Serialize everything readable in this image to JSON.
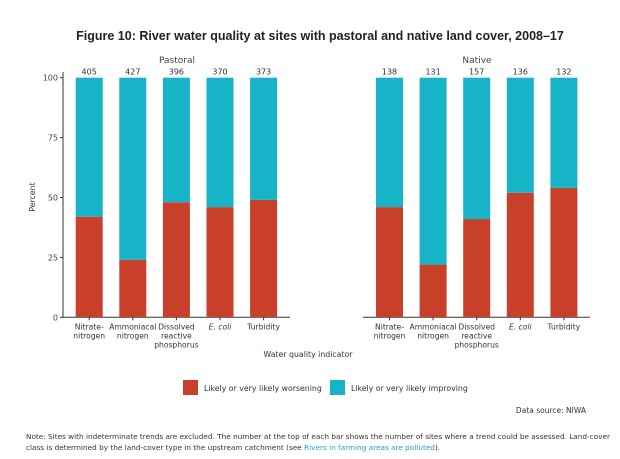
{
  "chart_data": [
    {
      "type": "bar",
      "stacked": true,
      "panel": "Pastoral",
      "title": "Figure 10: River water quality at sites with pastoral and native land cover, 2008–17",
      "xlabel": "Water quality indicator",
      "ylabel": "Percent",
      "ylim": [
        0,
        100
      ],
      "yticks": [
        0,
        25,
        50,
        75,
        100
      ],
      "categories": [
        [
          "Nitrate-",
          "nitrogen"
        ],
        [
          "Ammoniacal",
          "nitrogen"
        ],
        [
          "Dissolved",
          "reactive",
          "phosphorus"
        ],
        [
          "E. coli"
        ],
        [
          "Turbidity"
        ]
      ],
      "counts": [
        405,
        427,
        396,
        370,
        373
      ],
      "series": [
        {
          "name": "Likely or very likely worsening",
          "color": "#c9402a",
          "values": [
            42,
            24,
            48,
            46,
            49
          ]
        },
        {
          "name": "Likely or very likely improving",
          "color": "#17b3c6",
          "values": [
            58,
            76,
            52,
            54,
            51
          ]
        }
      ]
    },
    {
      "type": "bar",
      "stacked": true,
      "panel": "Native",
      "xlabel": "Water quality indicator",
      "ylabel": "Percent",
      "ylim": [
        0,
        100
      ],
      "categories": [
        [
          "Nitrate-",
          "nitrogen"
        ],
        [
          "Ammoniacal",
          "nitrogen"
        ],
        [
          "Dissolved",
          "reactive",
          "phosphorus"
        ],
        [
          "E. coli"
        ],
        [
          "Turbidity"
        ]
      ],
      "counts": [
        138,
        131,
        157,
        136,
        132
      ],
      "series": [
        {
          "name": "Likely or very likely worsening",
          "color": "#c9402a",
          "values": [
            46,
            22,
            41,
            52,
            54
          ]
        },
        {
          "name": "Likely or very likely improving",
          "color": "#17b3c6",
          "values": [
            54,
            78,
            59,
            48,
            46
          ]
        }
      ]
    }
  ],
  "figure": {
    "title": "Figure 10: River water quality at sites with pastoral and native land cover, 2008–17",
    "xlabel": "Water quality indicator",
    "ylabel": "Percent",
    "legend": [
      {
        "label": "Likely or very likely worsening",
        "color": "#c9402a"
      },
      {
        "label": "Likely or very likely improving",
        "color": "#17b3c6"
      }
    ],
    "source": "Data source: NIWA",
    "note_text": "Note: Sites with indeterminate trends are excluded. The number at the top of each bar shows the number of sites where a trend could be assessed. Land-cover class is determined by the land-cover type in the upstream catchment (see ",
    "note_link": "Rivers in farming areas are polluted",
    "note_end": ")."
  }
}
